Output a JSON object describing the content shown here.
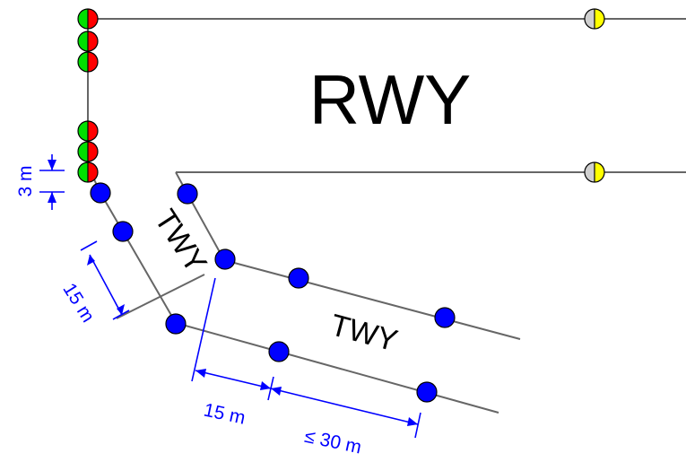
{
  "labels": {
    "runway": "RWY",
    "taxiway_entry": "TWY",
    "taxiway_main": "TWY"
  },
  "dimensions": {
    "lateral_offset": "3 m",
    "curve_spacing": "15 m",
    "tangent_offset": "15 m",
    "max_spacing": "≤ 30 m"
  },
  "colors": {
    "taxiway_centerline_light": "#0000ff",
    "stop_bar_green": "#00e000",
    "stop_bar_red": "#ff0000",
    "runway_edge_yellow": "#ffff00",
    "runway_edge_grey": "#d0d0d0",
    "pavement_edge": "#666666",
    "dimension": "#0000ff"
  },
  "icons": {
    "stop_bar_light": "half-green-half-red-circle",
    "runway_edge_light": "half-grey-half-yellow-circle",
    "taxiway_light": "blue-circle"
  }
}
